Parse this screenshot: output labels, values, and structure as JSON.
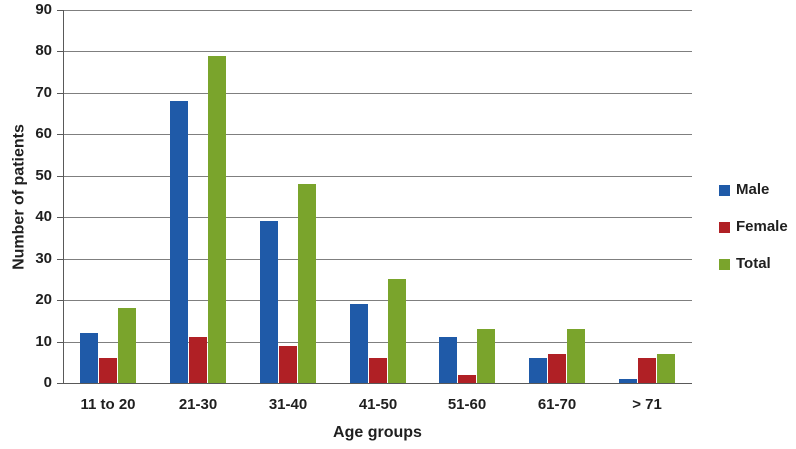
{
  "figure": {
    "background": "#ffffff"
  },
  "chart_data": {
    "type": "bar",
    "title": "",
    "xlabel": "Age groups",
    "ylabel": "Number of patients",
    "categories": [
      "11 to 20",
      "21-30",
      "31-40",
      "41-50",
      "51-60",
      "61-70",
      "> 71"
    ],
    "series": [
      {
        "name": "Male",
        "color": "#1F5AA8",
        "values": [
          12,
          68,
          39,
          19,
          11,
          6,
          1
        ]
      },
      {
        "name": "Female",
        "color": "#B02025",
        "values": [
          6,
          11,
          9,
          6,
          2,
          7,
          6
        ]
      },
      {
        "name": "Total",
        "color": "#7AA42C",
        "values": [
          18,
          79,
          48,
          25,
          13,
          13,
          7
        ]
      }
    ],
    "ylim": [
      0,
      90
    ],
    "ytick_step": 10,
    "yticks": [
      "0",
      "10",
      "20",
      "30",
      "40",
      "50",
      "60",
      "70",
      "80",
      "90"
    ],
    "grid": "horizontal",
    "legend_position": "right",
    "grid_color": "#7F7F7F",
    "axis_color": "#595959",
    "text_color": "#1F1F1F"
  }
}
